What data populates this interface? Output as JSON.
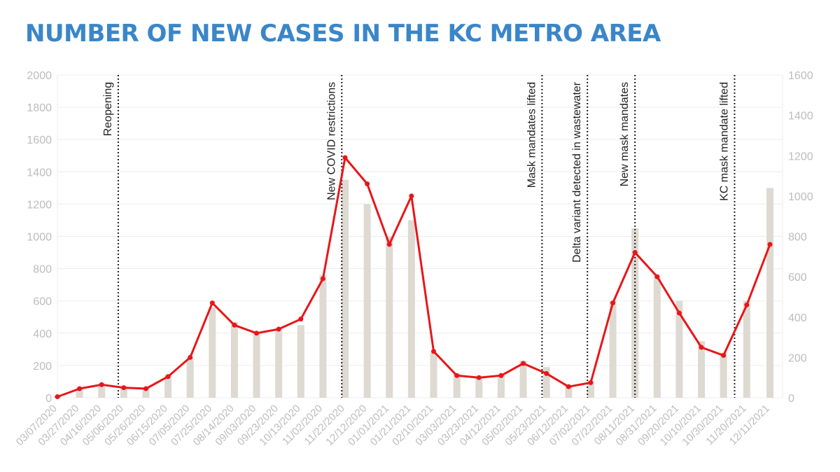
{
  "title": "NUMBER OF NEW CASES IN THE KC METRO AREA",
  "chart_data": {
    "type": "bar",
    "title": "NUMBER OF NEW CASES IN THE KC METRO AREA",
    "xlabel": "",
    "ylabel": "",
    "ylim": [
      0,
      2000
    ],
    "y2lim": [
      0,
      1600
    ],
    "y_ticks": [
      "0",
      "200",
      "400",
      "600",
      "800",
      "1000",
      "1200",
      "1400",
      "1600",
      "1800",
      "2000"
    ],
    "y2_ticks": [
      "0",
      "200",
      "400",
      "600",
      "800",
      "1000",
      "1200",
      "1400",
      "1600"
    ],
    "grid": true,
    "x_tick_labels": [
      "03/07/2020",
      "03/27/2020",
      "04/16/2020",
      "05/06/2020",
      "05/26/2020",
      "06/15/2020",
      "07/05/2020",
      "07/25/2020",
      "08/14/2020",
      "09/03/2020",
      "09/23/2020",
      "10/13/2020",
      "11/02/2020",
      "11/22/2020",
      "12/12/2020",
      "01/01/2021",
      "01/21/2021",
      "02/10/2021",
      "03/03/2021",
      "03/23/2021",
      "04/12/2021",
      "05/02/2021",
      "05/23/2021",
      "06/12/2021",
      "07/02/2021",
      "07/22/2021",
      "08/11/2021",
      "08/31/2021",
      "09/20/2021",
      "10/10/2021",
      "10/30/2021",
      "11/20/2021",
      "12/11/2021"
    ],
    "colors": {
      "bars": "#dedad2",
      "line": "#e8161a",
      "title": "#3a86c8"
    },
    "series": [
      {
        "kind": "bar",
        "axis": "left",
        "x": [
          "03/07/2020",
          "03/27/2020",
          "04/16/2020",
          "05/06/2020",
          "05/26/2020",
          "06/15/2020",
          "07/05/2020",
          "07/25/2020",
          "08/14/2020",
          "09/03/2020",
          "09/23/2020",
          "10/13/2020",
          "11/02/2020",
          "11/22/2020",
          "12/12/2020",
          "01/01/2021",
          "01/21/2021",
          "02/10/2021",
          "03/03/2021",
          "03/23/2021",
          "04/12/2021",
          "05/02/2021",
          "05/23/2021",
          "06/12/2021",
          "07/02/2021",
          "07/22/2021",
          "08/11/2021",
          "08/31/2021",
          "09/20/2021",
          "10/10/2021",
          "10/30/2021",
          "11/20/2021",
          "12/11/2021"
        ],
        "values": [
          10,
          60,
          70,
          60,
          60,
          140,
          250,
          560,
          470,
          400,
          430,
          450,
          760,
          1350,
          1200,
          1000,
          1100,
          280,
          150,
          130,
          140,
          230,
          190,
          80,
          100,
          600,
          1050,
          750,
          600,
          350,
          280,
          600,
          1300
        ]
      },
      {
        "kind": "line",
        "axis": "right",
        "x": [
          "03/07/2020",
          "03/27/2020",
          "04/16/2020",
          "05/06/2020",
          "05/26/2020",
          "06/15/2020",
          "07/05/2020",
          "07/25/2020",
          "08/14/2020",
          "09/03/2020",
          "09/23/2020",
          "10/13/2020",
          "11/02/2020",
          "11/22/2020",
          "12/12/2020",
          "01/01/2021",
          "01/21/2021",
          "02/10/2021",
          "03/03/2021",
          "03/23/2021",
          "04/12/2021",
          "05/02/2021",
          "05/23/2021",
          "06/12/2021",
          "07/02/2021",
          "07/22/2021",
          "08/11/2021",
          "08/31/2021",
          "09/20/2021",
          "10/10/2021",
          "10/30/2021",
          "11/20/2021",
          "12/11/2021"
        ],
        "values": [
          5,
          45,
          65,
          50,
          45,
          105,
          200,
          470,
          360,
          320,
          340,
          390,
          590,
          1190,
          1060,
          760,
          1000,
          230,
          110,
          100,
          110,
          170,
          120,
          55,
          75,
          470,
          720,
          600,
          420,
          250,
          210,
          460,
          760
        ]
      }
    ],
    "annotations": [
      {
        "date": "05/01/2020",
        "label": "Reopening"
      },
      {
        "date": "11/19/2020",
        "label": "New COVID restrictions"
      },
      {
        "date": "05/19/2021",
        "label": "Mask mandates lifted"
      },
      {
        "date": "06/29/2021",
        "label": "Delta variant detected in wastewater"
      },
      {
        "date": "08/11/2021",
        "label": "New mask mandates"
      },
      {
        "date": "11/09/2021",
        "label": "KC mask mandate lifted"
      }
    ]
  }
}
